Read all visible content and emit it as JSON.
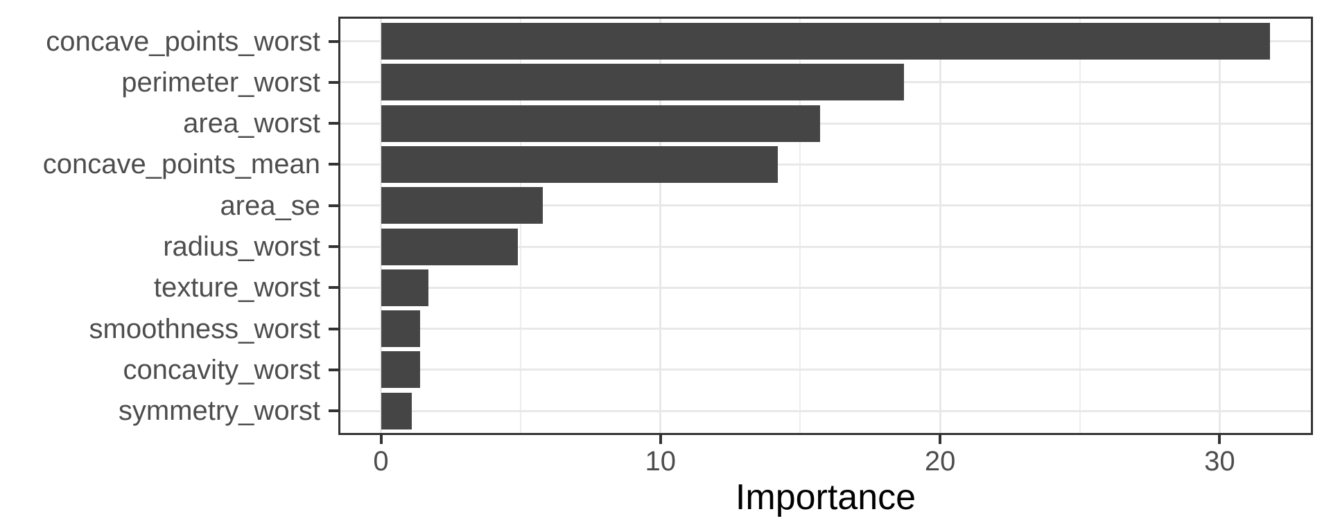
{
  "chart_data": {
    "type": "bar",
    "orientation": "horizontal",
    "title": "",
    "xlabel": "Importance",
    "ylabel": "",
    "categories": [
      "concave_points_worst",
      "perimeter_worst",
      "area_worst",
      "concave_points_mean",
      "area_se",
      "radius_worst",
      "texture_worst",
      "smoothness_worst",
      "concavity_worst",
      "symmetry_worst"
    ],
    "values": [
      31.8,
      18.7,
      15.7,
      14.2,
      5.8,
      4.9,
      1.7,
      1.4,
      1.4,
      1.1
    ],
    "x_major_ticks": [
      0,
      10,
      20,
      30
    ],
    "x_minor_ticks": [
      5,
      15,
      25
    ],
    "xlim": [
      -1.6,
      33.4
    ],
    "grid": "on",
    "legend": "none",
    "style": "ggplot-theme-bw",
    "colors": {
      "bar_fill": "#454545",
      "grid_major": "#E8E8E8",
      "grid_minor": "#EDEDED",
      "panel_border": "#333333",
      "panel_background": "#FFFFFF",
      "page_background": "#FFFFFF",
      "tick_mark": "#333333",
      "tick_label": "#4D4D4D",
      "axis_title": "#000000"
    }
  }
}
